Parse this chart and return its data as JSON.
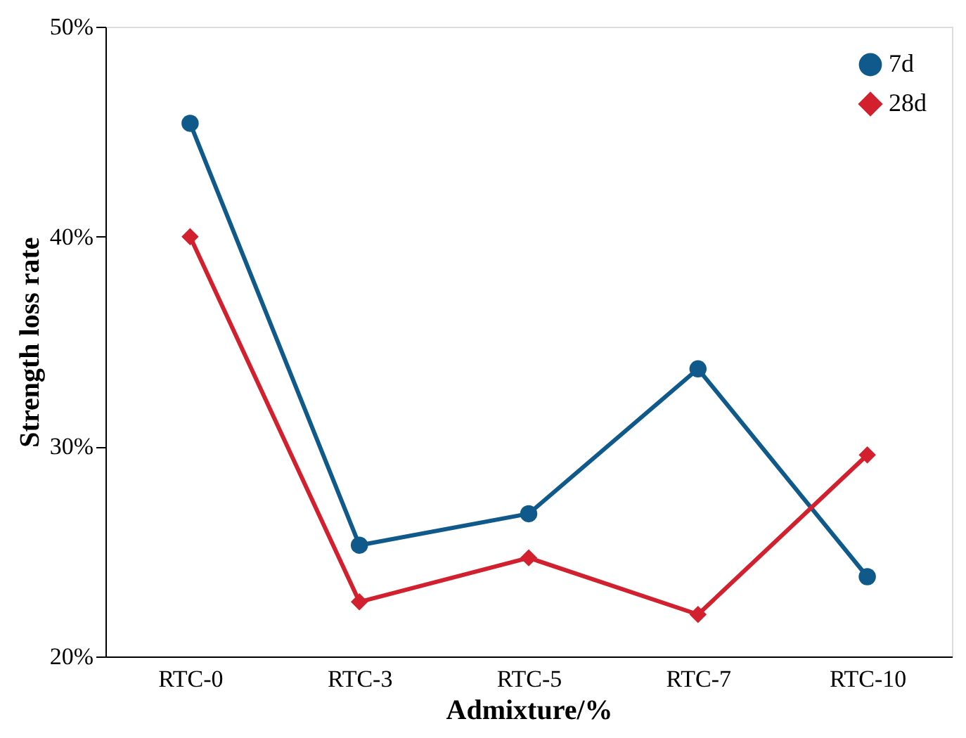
{
  "chart_data": {
    "type": "line",
    "xlabel": "Admixture/%",
    "ylabel": "Strength loss rate",
    "categories": [
      "RTC-0",
      "RTC-3",
      "RTC-5",
      "RTC-7",
      "RTC-10"
    ],
    "series": [
      {
        "name": "7d",
        "color": "#0f5a8a",
        "marker": "circle",
        "values": [
          45.4,
          25.3,
          26.8,
          33.7,
          23.8
        ]
      },
      {
        "name": "28d",
        "color": "#d2202e",
        "marker": "diamond",
        "values": [
          40.0,
          22.6,
          24.7,
          22.0,
          29.6
        ]
      }
    ],
    "ylim": [
      20,
      50
    ],
    "yticks": [
      {
        "value": 20,
        "label": "20%"
      },
      {
        "value": 30,
        "label": "30%"
      },
      {
        "value": 40,
        "label": "40%"
      },
      {
        "value": 50,
        "label": "50%"
      }
    ],
    "grid": false,
    "legend": "top right",
    "line_style": "solid"
  }
}
